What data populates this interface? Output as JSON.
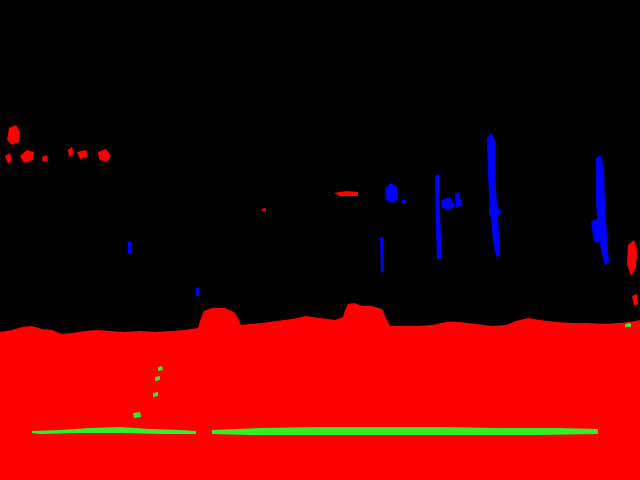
{
  "image": {
    "kind": "semantic segmentation mask",
    "background_color": "#000000",
    "classes": [
      {
        "name": "ground",
        "color": "#ff0000"
      },
      {
        "name": "lane-marking",
        "color": "#33ee22"
      },
      {
        "name": "pole",
        "color": "#0000ff"
      }
    ]
  }
}
